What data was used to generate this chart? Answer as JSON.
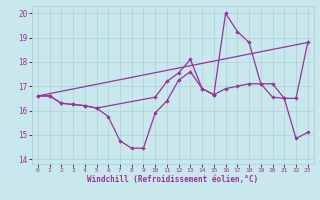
{
  "xlabel": "Windchill (Refroidissement éolien,°C)",
  "xlim": [
    -0.5,
    23.5
  ],
  "ylim": [
    13.8,
    20.3
  ],
  "xticks": [
    0,
    1,
    2,
    3,
    4,
    5,
    6,
    7,
    8,
    9,
    10,
    11,
    12,
    13,
    14,
    15,
    16,
    17,
    18,
    19,
    20,
    21,
    22,
    23
  ],
  "yticks": [
    14,
    15,
    16,
    17,
    18,
    19,
    20
  ],
  "bg_color": "#c8e8ee",
  "grid_color": "#aacccc",
  "line_color": "#993399",
  "line1_x": [
    0,
    1,
    2,
    3,
    4,
    5,
    6,
    7,
    8,
    9,
    10,
    11,
    12,
    13,
    14,
    15,
    16,
    17,
    18,
    19,
    20,
    21,
    22,
    23
  ],
  "line1_y": [
    16.6,
    16.6,
    16.3,
    16.25,
    16.2,
    16.1,
    15.75,
    14.75,
    14.45,
    14.45,
    15.9,
    16.4,
    17.25,
    17.6,
    16.9,
    16.65,
    16.9,
    17.0,
    17.1,
    17.1,
    16.55,
    16.5,
    14.85,
    15.1
  ],
  "line2_x": [
    0,
    1,
    2,
    3,
    4,
    5,
    10,
    11,
    12,
    13,
    14,
    15,
    16,
    17,
    18,
    19,
    20,
    21,
    22,
    23
  ],
  "line2_y": [
    16.6,
    16.6,
    16.3,
    16.25,
    16.2,
    16.1,
    16.55,
    17.2,
    17.55,
    18.1,
    16.9,
    16.65,
    20.0,
    19.25,
    18.8,
    17.1,
    17.1,
    16.5,
    16.5,
    18.8
  ],
  "line3_x": [
    0,
    23
  ],
  "line3_y": [
    16.6,
    18.8
  ]
}
